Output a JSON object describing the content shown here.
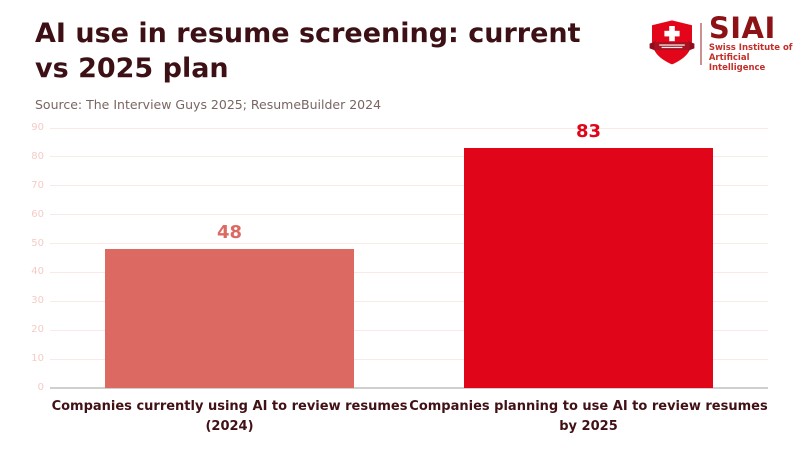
{
  "header": {
    "title": "AI use in resume screening: current vs 2025 plan",
    "source": "Source: The Interview Guys 2025; ResumeBuilder 2024"
  },
  "logo": {
    "shield_icon": "swiss-shield-cross-icon",
    "acronym": "SIAI",
    "subtitle_line1": "Swiss Institute of",
    "subtitle_line2": "Artificial Intelligence"
  },
  "chart_data": {
    "type": "bar",
    "title": "AI use in resume screening: current vs 2025 plan",
    "source_note": "Source: The Interview Guys 2025; ResumeBuilder 2024",
    "categories": [
      "Companies currently using AI to review resumes (2024)",
      "Companies planning to use AI to review resumes by 2025"
    ],
    "values": [
      48,
      83
    ],
    "value_labels": [
      "48",
      "83"
    ],
    "bar_colors": [
      "#DC6A62",
      "#E1051A"
    ],
    "value_label_colors": [
      "#DC6A62",
      "#E1051A"
    ],
    "xlabel": "",
    "ylabel": "",
    "ylim": [
      0,
      90
    ],
    "ytick_step": 10,
    "grid": "horizontal gridlines on",
    "legend": "none",
    "tick_label_color": "#F4CCC6",
    "gridline_color": "#FAE9E6",
    "baseline_color": "#CFCFCF"
  },
  "colors": {
    "background": "#FFFFFF",
    "title_text": "#3D1015",
    "source_text": "#7A6563",
    "category_text": "#421116",
    "logo_shield_red": "#E3061A",
    "logo_ribbon_red": "#A81220",
    "logo_acronym_red": "#8D1216",
    "logo_subtitle_red": "#C3302B"
  }
}
